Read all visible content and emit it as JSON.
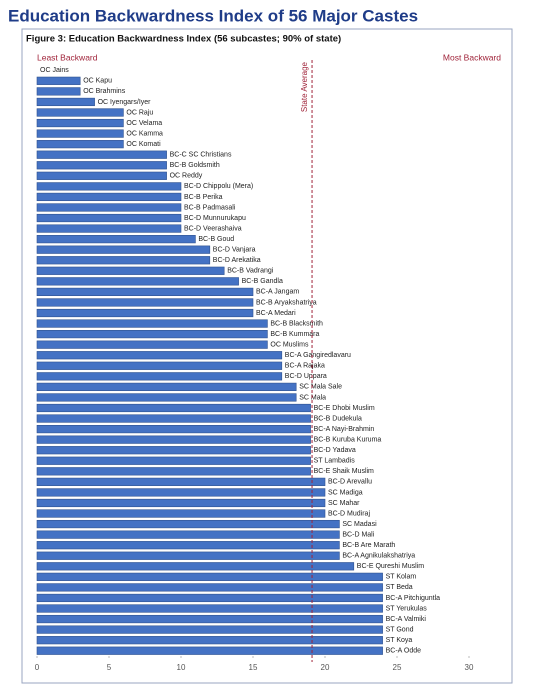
{
  "header": {
    "title": "Education Backwardness Index of 56 Major Castes"
  },
  "chart_data": {
    "type": "barh",
    "title": "Figure 3: Education Backwardness Index (56 subcastes; 90% of state)",
    "annotations": {
      "left": "Least Backward",
      "right": "Most Backward"
    },
    "reference_line": {
      "label": "State Average",
      "value": 19.1,
      "color": "#a0243a"
    },
    "color": "#4472c4",
    "xlim": [
      0,
      30
    ],
    "xticks": [
      0,
      5,
      10,
      15,
      20,
      25,
      30
    ],
    "grid": false,
    "categories": [
      "OC Jains",
      "OC Kapu",
      "OC Brahmins",
      "OC Iyengars/Iyer",
      "OC Raju",
      "OC Velama",
      "OC Kamma",
      "OC Komati",
      "BC-C SC Christians",
      "BC-B Goldsmith",
      "OC Reddy",
      "BC-D Chippolu (Mera)",
      "BC-B Perika",
      "BC-B Padmasali",
      "BC-D Munnurukapu",
      "BC-D Veerashaiva",
      "BC-B Goud",
      "BC-D Vanjara",
      "BC-D Arekatika",
      "BC-B Vadrangi",
      "BC-B Gandla",
      "BC-A Jangam",
      "BC-B Aryakshatriya",
      "BC-A Medari",
      "BC-B Blacksmith",
      "BC-B Kummara",
      "OC Muslims",
      "BC-A Gangiredlavaru",
      "BC-A Rajaka",
      "BC-D Uppara",
      "SC Mala Sale",
      "SC Mala",
      "BC-E Dhobi Muslim",
      "BC-B Dudekula",
      "BC-A Nayi-Brahmin",
      "BC-B Kuruba Kuruma",
      "BC-D Yadava",
      "ST Lambadis",
      "BC-E Shaik Muslim",
      "BC-D Arevallu",
      "SC Madiga",
      "SC Mahar",
      "BC-D Mudiraj",
      "SC Madasi",
      "BC-D Mali",
      "BC-B Are Marath",
      "BC-A Agnikulakshatriya",
      "BC-E Qureshi Muslim",
      "ST Kolam",
      "ST Beda",
      "BC-A Pitchiguntla",
      "ST Yerukulas",
      "BC-A Valmiki",
      "ST Gond",
      "ST Koya",
      "BC-A Odde"
    ],
    "values": [
      0,
      3,
      3,
      4,
      6,
      6,
      6,
      6,
      9,
      9,
      9,
      10,
      10,
      10,
      10,
      10,
      11,
      12,
      12,
      13,
      14,
      15,
      15,
      15,
      16,
      16,
      16,
      17,
      17,
      17,
      18,
      18,
      19,
      19,
      19,
      19,
      19,
      19,
      19,
      20,
      20,
      20,
      20,
      21,
      21,
      21,
      21,
      22,
      24,
      24,
      24,
      24,
      24,
      24,
      24,
      24
    ]
  }
}
